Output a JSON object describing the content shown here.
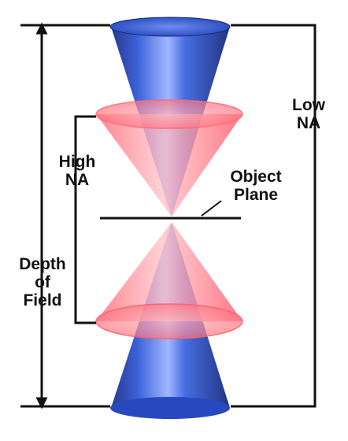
{
  "labels": {
    "low_na": [
      "Low",
      "NA"
    ],
    "high_na": [
      "High",
      "NA"
    ],
    "object_plane": [
      "Object",
      "Plane"
    ],
    "depth_of_field": [
      "Depth",
      "of",
      "Field"
    ]
  },
  "colors": {
    "low_na_cone": "#2d56c8",
    "high_na_cone": "#ff8a94",
    "lines": "#111111"
  }
}
